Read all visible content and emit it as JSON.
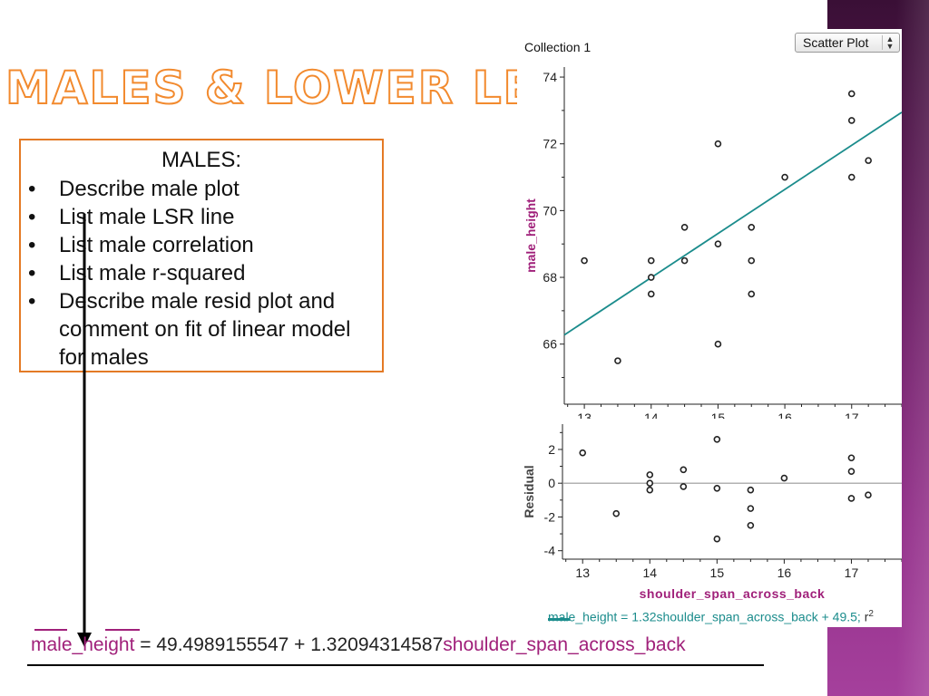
{
  "slide": {
    "title": "Males & Lower Leg",
    "box_heading": "MALES:",
    "bullets": [
      "Describe male plot",
      "List male LSR line",
      "List male correlation",
      "List male r-squared",
      "Describe male resid plot and comment on fit of linear model for males"
    ],
    "bullet_symbol": "•",
    "accent_color": "#e47a25",
    "sidebar_color": "#93308a"
  },
  "fathom": {
    "collection": "Collection 1",
    "plot_type": "Scatter Plot",
    "legend": "male_height = 1.32shoulder_span_across_back + 49.5;",
    "legend_r": "r",
    "legend_r_sup": "2"
  },
  "equation": {
    "y": "male_height",
    "mid": " = 49.4989155547 + 1.32094314587",
    "x": "shoulder_span_across_back"
  },
  "chart_data": [
    {
      "type": "scatter",
      "title": "",
      "xlabel": "shoulder_span_across_back",
      "ylabel": "male_height",
      "xlim": [
        12.7,
        17.75
      ],
      "ylim": [
        64.2,
        74.3
      ],
      "xticks": [
        "13",
        "14",
        "15",
        "16",
        "17"
      ],
      "yticks": [
        "66",
        "68",
        "70",
        "72",
        "74"
      ],
      "points": [
        [
          13,
          68.5
        ],
        [
          13.5,
          65.5
        ],
        [
          14,
          68.5
        ],
        [
          14,
          68
        ],
        [
          14,
          67.5
        ],
        [
          14.5,
          69.5
        ],
        [
          14.5,
          68.5
        ],
        [
          15,
          72
        ],
        [
          15,
          69
        ],
        [
          15,
          66
        ],
        [
          15.5,
          69.5
        ],
        [
          15.5,
          68.5
        ],
        [
          15.5,
          67.5
        ],
        [
          16,
          71
        ],
        [
          17,
          73.5
        ],
        [
          17,
          72.7
        ],
        [
          17,
          71
        ],
        [
          17.25,
          71.5
        ]
      ],
      "fit_line": {
        "slope": 1.32094314587,
        "intercept": 49.4989155547
      },
      "line_color": "#1b8c8c",
      "label_color": "#a0207a",
      "grid": false
    },
    {
      "type": "scatter",
      "title": "",
      "xlabel": "shoulder_span_across_back",
      "ylabel": "Residual",
      "xlim": [
        12.7,
        17.75
      ],
      "ylim": [
        -4.5,
        3.5
      ],
      "xticks": [
        "13",
        "14",
        "15",
        "16",
        "17"
      ],
      "yticks": [
        "-4",
        "-2",
        "0",
        "2"
      ],
      "points": [
        [
          13,
          1.8
        ],
        [
          13.5,
          -1.8
        ],
        [
          14,
          0.5
        ],
        [
          14,
          0
        ],
        [
          14,
          -0.4
        ],
        [
          14.5,
          0.8
        ],
        [
          14.5,
          -0.2
        ],
        [
          15,
          2.6
        ],
        [
          15,
          -0.3
        ],
        [
          15,
          -3.3
        ],
        [
          15.5,
          -0.4
        ],
        [
          15.5,
          -1.5
        ],
        [
          15.5,
          -2.5
        ],
        [
          16,
          0.3
        ],
        [
          17,
          1.5
        ],
        [
          17,
          0.7
        ],
        [
          17,
          -0.9
        ],
        [
          17.25,
          -0.7
        ]
      ],
      "zero_line": 0,
      "label_color": "#a0207a",
      "grid": false
    }
  ]
}
